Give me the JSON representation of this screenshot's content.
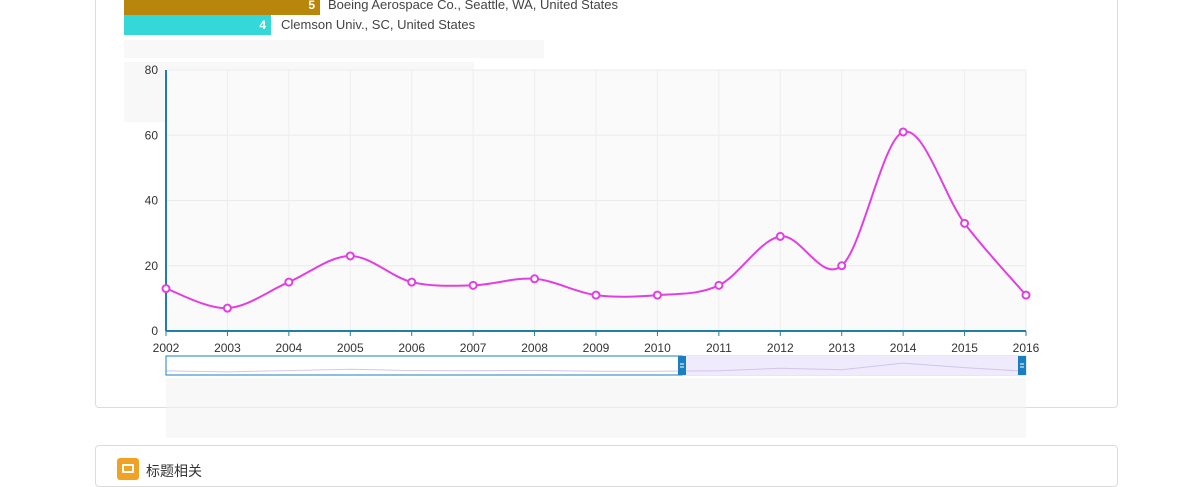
{
  "top_bars": [
    {
      "value": "5",
      "label": "Boeing Aerospace Co., Seattle, WA, United States",
      "color": "#b8860b",
      "fraction": 1.0
    },
    {
      "value": "4",
      "label": "Clemson Univ., SC, United States",
      "color": "#35d8d8",
      "fraction": 0.75
    }
  ],
  "chart_data": {
    "type": "line",
    "x": [
      "2002",
      "2003",
      "2004",
      "2005",
      "2006",
      "2007",
      "2008",
      "2009",
      "2010",
      "2011",
      "2012",
      "2013",
      "2014",
      "2015",
      "2016"
    ],
    "values": [
      13,
      7,
      15,
      23,
      15,
      14,
      16,
      11,
      11,
      14,
      29,
      20,
      61,
      33,
      11
    ],
    "yticks": [
      "0",
      "20",
      "40",
      "60",
      "80"
    ],
    "ylim": [
      0,
      80
    ],
    "line_color": "#e23fe2",
    "axis_color": "#1f7fa6",
    "zoom_range": [
      2002,
      2016
    ],
    "zoom_handle_color": "#1a7fc1"
  },
  "section": {
    "title": "标题相关",
    "icon": "document-icon",
    "icon_color": "#f0a224"
  }
}
